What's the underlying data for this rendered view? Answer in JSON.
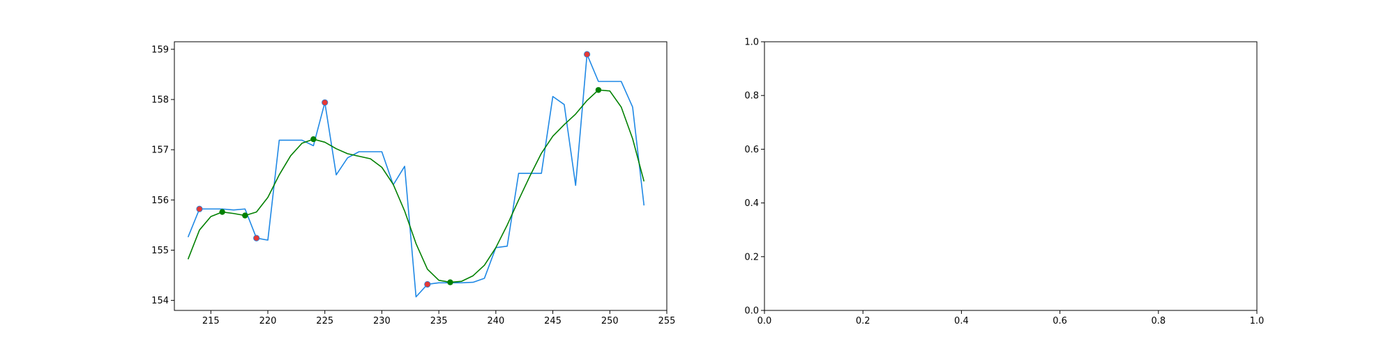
{
  "chart_data": [
    {
      "type": "line",
      "xlim": [
        211.8,
        255
      ],
      "ylim": [
        153.8,
        159.15
      ],
      "x_ticks": [
        215,
        220,
        225,
        230,
        235,
        240,
        245,
        250,
        255
      ],
      "y_ticks": [
        154,
        155,
        156,
        157,
        158,
        159
      ],
      "grid": false,
      "series": [
        {
          "role": "raw",
          "color": "#1e88e5",
          "x": [
            213,
            214,
            215,
            216,
            217,
            218,
            219,
            220,
            221,
            222,
            223,
            224,
            225,
            226,
            227,
            228,
            229,
            230,
            231,
            232,
            233,
            234,
            235,
            236,
            237,
            238,
            239,
            240,
            241,
            242,
            243,
            244,
            245,
            246,
            247,
            248,
            249,
            250,
            251,
            252,
            253
          ],
          "y": [
            155.26,
            155.82,
            155.82,
            155.82,
            155.8,
            155.82,
            155.24,
            155.2,
            157.19,
            157.19,
            157.19,
            157.08,
            157.94,
            156.5,
            156.84,
            156.96,
            156.96,
            156.96,
            156.3,
            156.67,
            154.07,
            154.32,
            154.35,
            154.35,
            154.35,
            154.36,
            154.44,
            155.05,
            155.08,
            156.53,
            156.53,
            156.53,
            158.06,
            157.9,
            156.29,
            158.9,
            158.36,
            158.36,
            158.36,
            157.85,
            155.89
          ]
        },
        {
          "role": "smoothed",
          "color": "#008000",
          "x": [
            213,
            214,
            215,
            216,
            217,
            218,
            219,
            220,
            221,
            222,
            223,
            224,
            225,
            226,
            227,
            228,
            229,
            230,
            231,
            232,
            233,
            234,
            235,
            236,
            237,
            238,
            239,
            240,
            241,
            242,
            243,
            244,
            245,
            246,
            247,
            248,
            249,
            250,
            251,
            252,
            253
          ],
          "y": [
            154.82,
            155.4,
            155.67,
            155.76,
            155.73,
            155.69,
            155.76,
            156.05,
            156.5,
            156.88,
            157.13,
            157.21,
            157.15,
            157.02,
            156.92,
            156.87,
            156.82,
            156.65,
            156.31,
            155.78,
            155.13,
            154.62,
            154.4,
            154.36,
            154.38,
            154.49,
            154.7,
            155.05,
            155.5,
            156.0,
            156.48,
            156.93,
            157.27,
            157.5,
            157.71,
            157.98,
            158.19,
            158.17,
            157.85,
            157.22,
            156.37
          ]
        }
      ],
      "raw_extrema": {
        "color": "#e53935",
        "x": [
          214,
          219,
          225,
          234,
          248
        ],
        "y": [
          155.82,
          155.24,
          157.94,
          154.32,
          158.9
        ]
      },
      "smoothed_extrema": {
        "color": "#008000",
        "x": [
          216,
          218,
          224,
          236,
          249
        ],
        "y": [
          155.76,
          155.69,
          157.21,
          154.36,
          158.19
        ]
      }
    },
    {
      "type": "line",
      "empty": true,
      "xlim": [
        0,
        1
      ],
      "ylim": [
        0,
        1
      ],
      "x_ticks": [
        "0.0",
        "0.2",
        "0.4",
        "0.6",
        "0.8",
        "1.0"
      ],
      "y_ticks": [
        "0.0",
        "0.2",
        "0.4",
        "0.6",
        "0.8",
        "1.0"
      ],
      "grid": false,
      "series": []
    }
  ]
}
